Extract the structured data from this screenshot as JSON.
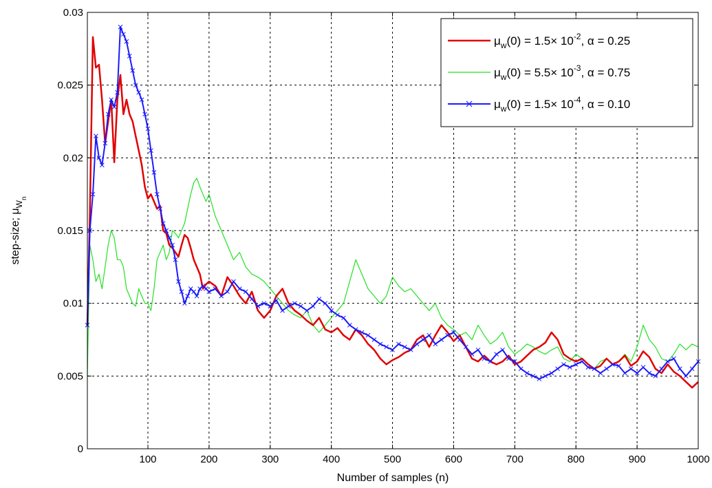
{
  "chart_data": {
    "type": "line",
    "title": "",
    "xlabel": "Number of samples (n)",
    "ylabel": {
      "main": "step-size; μ",
      "sub": "W",
      "subsub": "n"
    },
    "xlim": [
      1,
      1000
    ],
    "ylim": [
      0,
      0.03
    ],
    "xticks": [
      100,
      200,
      300,
      400,
      500,
      600,
      700,
      800,
      900,
      1000
    ],
    "yticks": [
      0,
      0.005,
      0.01,
      0.015,
      0.02,
      0.025,
      0.03
    ],
    "ytick_labels": [
      "0",
      "0.005",
      "0.01",
      "0.015",
      "0.02",
      "0.025",
      "0.03"
    ],
    "grid": true,
    "legend_position": "top-right",
    "series": [
      {
        "name": "μ_w(0) = 1.5× 10^-2, α = 0.25",
        "legend": {
          "mu": "μ",
          "sub": "w",
          "pre": "(0) = 1.5× 10",
          "exp": "-2",
          "post": ", α = 0.25"
        },
        "color": "#e00000",
        "marker": "none",
        "x": [
          1,
          5,
          10,
          15,
          20,
          25,
          30,
          35,
          40,
          45,
          50,
          55,
          60,
          65,
          70,
          75,
          80,
          85,
          90,
          95,
          100,
          105,
          110,
          115,
          120,
          125,
          130,
          135,
          140,
          145,
          150,
          155,
          160,
          165,
          170,
          175,
          180,
          185,
          190,
          195,
          200,
          210,
          220,
          230,
          240,
          250,
          260,
          270,
          280,
          290,
          300,
          310,
          320,
          330,
          340,
          350,
          360,
          370,
          380,
          390,
          400,
          410,
          420,
          430,
          440,
          450,
          460,
          470,
          480,
          490,
          500,
          510,
          520,
          530,
          540,
          550,
          560,
          570,
          580,
          590,
          600,
          610,
          620,
          630,
          640,
          650,
          660,
          670,
          680,
          690,
          700,
          710,
          720,
          730,
          740,
          750,
          760,
          770,
          780,
          790,
          800,
          810,
          820,
          830,
          840,
          850,
          860,
          870,
          880,
          890,
          900,
          910,
          920,
          930,
          940,
          950,
          960,
          970,
          980,
          990,
          1000
        ],
        "values": [
          0.0085,
          0.016,
          0.0283,
          0.0262,
          0.0264,
          0.024,
          0.021,
          0.0225,
          0.024,
          0.0197,
          0.024,
          0.0257,
          0.023,
          0.024,
          0.023,
          0.0225,
          0.0215,
          0.0205,
          0.0195,
          0.018,
          0.0172,
          0.0175,
          0.017,
          0.0165,
          0.0167,
          0.015,
          0.0148,
          0.014,
          0.0138,
          0.0135,
          0.0132,
          0.014,
          0.0147,
          0.0145,
          0.0138,
          0.013,
          0.0125,
          0.012,
          0.011,
          0.0113,
          0.0115,
          0.0112,
          0.0105,
          0.0118,
          0.0112,
          0.0105,
          0.01,
          0.0108,
          0.0095,
          0.009,
          0.0095,
          0.0105,
          0.011,
          0.01,
          0.0095,
          0.0092,
          0.0088,
          0.0085,
          0.009,
          0.0082,
          0.008,
          0.0083,
          0.0078,
          0.0075,
          0.0082,
          0.0078,
          0.0072,
          0.0068,
          0.0062,
          0.0058,
          0.0061,
          0.0063,
          0.0066,
          0.0068,
          0.0075,
          0.0078,
          0.007,
          0.0078,
          0.0085,
          0.008,
          0.0074,
          0.0078,
          0.007,
          0.0062,
          0.006,
          0.0064,
          0.006,
          0.0058,
          0.006,
          0.0064,
          0.0058,
          0.006,
          0.0064,
          0.0068,
          0.007,
          0.0073,
          0.008,
          0.0075,
          0.0065,
          0.0062,
          0.006,
          0.0062,
          0.0058,
          0.0055,
          0.0057,
          0.0062,
          0.0058,
          0.006,
          0.0064,
          0.0057,
          0.006,
          0.0067,
          0.0063,
          0.0055,
          0.0052,
          0.0058,
          0.0053,
          0.005,
          0.0046,
          0.0042,
          0.0046
        ]
      },
      {
        "name": "μ_w(0) = 5.5× 10^-3, α = 0.75",
        "legend": {
          "mu": "μ",
          "sub": "w",
          "pre": "(0) = 5.5× 10",
          "exp": "-3",
          "post": ", α = 0.75"
        },
        "color": "#22e022",
        "marker": "none",
        "x": [
          1,
          5,
          10,
          15,
          20,
          25,
          30,
          35,
          40,
          45,
          50,
          55,
          60,
          65,
          70,
          75,
          80,
          85,
          90,
          95,
          100,
          105,
          110,
          115,
          120,
          125,
          130,
          135,
          140,
          145,
          150,
          155,
          160,
          165,
          170,
          175,
          180,
          185,
          190,
          195,
          200,
          210,
          220,
          230,
          240,
          250,
          260,
          270,
          280,
          290,
          300,
          310,
          320,
          330,
          340,
          350,
          360,
          370,
          380,
          390,
          400,
          410,
          420,
          430,
          440,
          450,
          460,
          470,
          480,
          490,
          500,
          510,
          520,
          530,
          540,
          550,
          560,
          570,
          580,
          590,
          600,
          610,
          620,
          630,
          640,
          650,
          660,
          670,
          680,
          690,
          700,
          710,
          720,
          730,
          740,
          750,
          760,
          770,
          780,
          790,
          800,
          810,
          820,
          830,
          840,
          850,
          860,
          870,
          880,
          890,
          900,
          910,
          920,
          930,
          940,
          950,
          960,
          970,
          980,
          990,
          1000
        ],
        "values": [
          0.005,
          0.014,
          0.013,
          0.0115,
          0.012,
          0.011,
          0.0125,
          0.014,
          0.015,
          0.0145,
          0.013,
          0.013,
          0.0125,
          0.011,
          0.0105,
          0.01,
          0.0098,
          0.011,
          0.0105,
          0.01,
          0.01,
          0.0095,
          0.011,
          0.013,
          0.0135,
          0.014,
          0.013,
          0.0135,
          0.015,
          0.0148,
          0.0145,
          0.015,
          0.0155,
          0.0165,
          0.0175,
          0.0183,
          0.0186,
          0.018,
          0.0175,
          0.017,
          0.0175,
          0.016,
          0.015,
          0.014,
          0.013,
          0.0135,
          0.0125,
          0.012,
          0.0118,
          0.0115,
          0.011,
          0.0105,
          0.01,
          0.0095,
          0.0092,
          0.009,
          0.0095,
          0.0085,
          0.008,
          0.0085,
          0.009,
          0.0095,
          0.01,
          0.0115,
          0.013,
          0.012,
          0.011,
          0.0105,
          0.01,
          0.0105,
          0.0118,
          0.0112,
          0.0108,
          0.011,
          0.0105,
          0.01,
          0.0095,
          0.01,
          0.009,
          0.0085,
          0.0082,
          0.0078,
          0.008,
          0.0075,
          0.0085,
          0.0078,
          0.0072,
          0.0075,
          0.008,
          0.007,
          0.0065,
          0.0068,
          0.0072,
          0.007,
          0.0067,
          0.0065,
          0.0068,
          0.007,
          0.0062,
          0.006,
          0.0065,
          0.0062,
          0.0058,
          0.0055,
          0.006,
          0.0062,
          0.0058,
          0.006,
          0.0065,
          0.006,
          0.007,
          0.0085,
          0.0075,
          0.007,
          0.0062,
          0.006,
          0.0065,
          0.0072,
          0.0068,
          0.0072,
          0.007
        ]
      },
      {
        "name": "μ_w(0) = 1.5× 10^-4, α = 0.10",
        "legend": {
          "mu": "μ",
          "sub": "w",
          "pre": "(0) = 1.5× 10",
          "exp": "-4",
          "post": ", α = 0.10"
        },
        "color": "#1a1aff",
        "marker": "x",
        "x": [
          1,
          5,
          10,
          15,
          20,
          25,
          30,
          35,
          40,
          45,
          50,
          55,
          60,
          65,
          70,
          75,
          80,
          85,
          90,
          95,
          100,
          105,
          110,
          115,
          120,
          125,
          130,
          135,
          140,
          145,
          150,
          155,
          160,
          165,
          170,
          175,
          180,
          185,
          190,
          195,
          200,
          210,
          220,
          230,
          240,
          250,
          260,
          270,
          280,
          290,
          300,
          310,
          320,
          330,
          340,
          350,
          360,
          370,
          380,
          390,
          400,
          410,
          420,
          430,
          440,
          450,
          460,
          470,
          480,
          490,
          500,
          510,
          520,
          530,
          540,
          550,
          560,
          570,
          580,
          590,
          600,
          610,
          620,
          630,
          640,
          650,
          660,
          670,
          680,
          690,
          700,
          710,
          720,
          730,
          740,
          750,
          760,
          770,
          780,
          790,
          800,
          810,
          820,
          830,
          840,
          850,
          860,
          870,
          880,
          890,
          900,
          910,
          920,
          930,
          940,
          950,
          960,
          970,
          980,
          990,
          1000
        ],
        "values": [
          0.0085,
          0.015,
          0.0175,
          0.0215,
          0.02,
          0.0195,
          0.021,
          0.023,
          0.024,
          0.0235,
          0.0245,
          0.029,
          0.0285,
          0.028,
          0.027,
          0.026,
          0.025,
          0.0245,
          0.024,
          0.023,
          0.022,
          0.0205,
          0.019,
          0.0175,
          0.0165,
          0.0155,
          0.015,
          0.0145,
          0.014,
          0.013,
          0.0115,
          0.0108,
          0.01,
          0.0105,
          0.011,
          0.0108,
          0.0105,
          0.011,
          0.0112,
          0.011,
          0.0108,
          0.011,
          0.0105,
          0.0108,
          0.0115,
          0.011,
          0.0108,
          0.0103,
          0.0098,
          0.01,
          0.0098,
          0.0102,
          0.0095,
          0.0098,
          0.01,
          0.0098,
          0.0095,
          0.0098,
          0.0103,
          0.01,
          0.0095,
          0.0092,
          0.009,
          0.0085,
          0.0082,
          0.008,
          0.0078,
          0.0075,
          0.0072,
          0.007,
          0.0068,
          0.0072,
          0.007,
          0.0068,
          0.0072,
          0.0075,
          0.0078,
          0.0072,
          0.0075,
          0.0078,
          0.008,
          0.0075,
          0.007,
          0.0065,
          0.0068,
          0.0062,
          0.006,
          0.0065,
          0.0068,
          0.0062,
          0.006,
          0.0055,
          0.0052,
          0.005,
          0.0048,
          0.005,
          0.0052,
          0.0055,
          0.0058,
          0.0056,
          0.0058,
          0.006,
          0.0056,
          0.0055,
          0.0052,
          0.0055,
          0.0058,
          0.0057,
          0.0052,
          0.0055,
          0.0052,
          0.0056,
          0.0052,
          0.005,
          0.0055,
          0.006,
          0.0062,
          0.0055,
          0.005,
          0.0055,
          0.006
        ]
      }
    ]
  }
}
